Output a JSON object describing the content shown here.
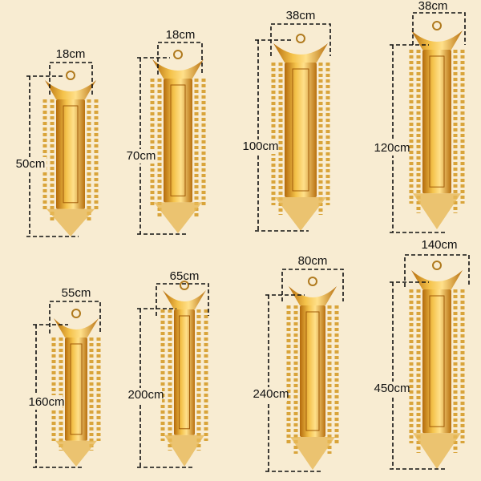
{
  "items": [
    {
      "width": "18cm",
      "height": "50cm"
    },
    {
      "width": "18cm",
      "height": "70cm"
    },
    {
      "width": "38cm",
      "height": "100cm"
    },
    {
      "width": "38cm",
      "height": "120cm"
    },
    {
      "width": "55cm",
      "height": "160cm"
    },
    {
      "width": "65cm",
      "height": "200cm"
    },
    {
      "width": "80cm",
      "height": "240cm"
    },
    {
      "width": "140cm",
      "height": "450cm"
    }
  ]
}
